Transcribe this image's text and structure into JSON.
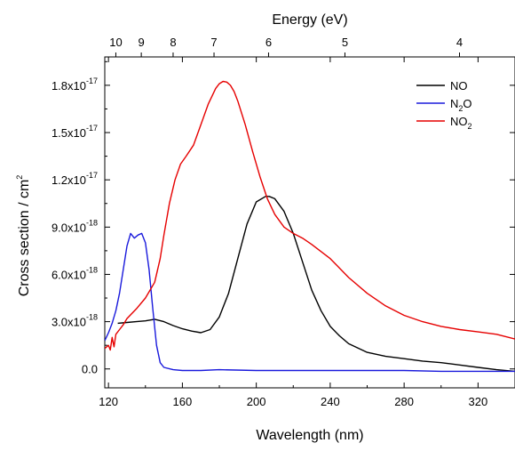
{
  "chart_data": {
    "type": "line",
    "title": "",
    "xlabel": "Wavelength (nm)",
    "ylabel": "Cross section / cm",
    "ylabel_sup": "2",
    "top_axis_label": "Energy (eV)",
    "xlim": [
      118,
      340
    ],
    "ylim": [
      -1.2e-18,
      1.98e-17
    ],
    "x_ticks": [
      120,
      160,
      200,
      240,
      280,
      320
    ],
    "x_tick_labels": [
      "120",
      "160",
      "200",
      "240",
      "280",
      "320"
    ],
    "y_ticks": [
      0,
      3e-18,
      6e-18,
      9e-18,
      1.2e-17,
      1.5e-17,
      1.8e-17
    ],
    "y_tick_labels": [
      {
        "mantissa": "0.0",
        "exp": ""
      },
      {
        "mantissa": "3.0x10",
        "exp": "-18"
      },
      {
        "mantissa": "6.0x10",
        "exp": "-18"
      },
      {
        "mantissa": "9.0x10",
        "exp": "-18"
      },
      {
        "mantissa": "1.2x10",
        "exp": "-17"
      },
      {
        "mantissa": "1.5x10",
        "exp": "-17"
      },
      {
        "mantissa": "1.8x10",
        "exp": "-17"
      }
    ],
    "energy_ticks": [
      {
        "label": "10",
        "ev": 10
      },
      {
        "label": "9",
        "ev": 9
      },
      {
        "label": "8",
        "ev": 8
      },
      {
        "label": "7",
        "ev": 7
      },
      {
        "label": "6",
        "ev": 6
      },
      {
        "label": "5",
        "ev": 5
      },
      {
        "label": "4",
        "ev": 4
      }
    ],
    "grid": false,
    "legend_position": "top-right",
    "series": [
      {
        "name": "NO",
        "name_base": "NO",
        "name_sub": "",
        "color": "#000000",
        "x": [
          125,
          130,
          135,
          140,
          145,
          150,
          155,
          160,
          165,
          170,
          175,
          180,
          185,
          190,
          195,
          200,
          205,
          207,
          210,
          215,
          220,
          225,
          230,
          235,
          240,
          245,
          250,
          260,
          270,
          280,
          290,
          300,
          310,
          320,
          330,
          340
        ],
        "y": [
          2.9e-18,
          2.95e-18,
          3e-18,
          3.05e-18,
          3.15e-18,
          3e-18,
          2.75e-18,
          2.55e-18,
          2.4e-18,
          2.3e-18,
          2.5e-18,
          3.3e-18,
          4.8e-18,
          7e-18,
          9.2e-18,
          1.06e-17,
          1.095e-17,
          1.095e-17,
          1.08e-17,
          1e-17,
          8.6e-18,
          6.8e-18,
          5e-18,
          3.7e-18,
          2.7e-18,
          2.1e-18,
          1.6e-18,
          1.05e-18,
          8e-19,
          6.5e-19,
          5e-19,
          4e-19,
          2.5e-19,
          1e-19,
          -5e-20,
          -1.5e-19
        ]
      },
      {
        "name": "N2O",
        "name_base": "N",
        "name_sub": "2",
        "name_tail": "O",
        "color": "#1a1adc",
        "x": [
          118,
          120,
          122,
          124,
          126,
          128,
          130,
          132,
          134,
          136,
          138,
          140,
          142,
          144,
          146,
          148,
          150,
          155,
          160,
          170,
          180,
          200,
          220,
          240,
          260,
          280,
          300,
          320,
          340
        ],
        "y": [
          1.8e-18,
          2.3e-18,
          2.9e-18,
          3.7e-18,
          4.8e-18,
          6.3e-18,
          7.8e-18,
          8.6e-18,
          8.3e-18,
          8.5e-18,
          8.6e-18,
          8e-18,
          6.3e-18,
          3.8e-18,
          1.5e-18,
          4e-19,
          1e-19,
          -5e-20,
          -1e-19,
          -1e-19,
          -5e-20,
          -1e-19,
          -1e-19,
          -1e-19,
          -1e-19,
          -1e-19,
          -1.5e-19,
          -1.5e-19,
          -1.5e-19
        ]
      },
      {
        "name": "NO2",
        "name_base": "NO",
        "name_sub": "2",
        "color": "#e60000",
        "x": [
          118,
          120,
          121,
          122,
          123,
          124,
          126,
          128,
          130,
          135,
          140,
          145,
          148,
          150,
          153,
          156,
          159,
          162,
          166,
          170,
          174,
          178,
          180,
          182,
          184,
          186,
          188,
          190,
          194,
          198,
          202,
          206,
          210,
          215,
          220,
          225,
          230,
          240,
          250,
          260,
          270,
          280,
          290,
          300,
          310,
          320,
          330,
          340
        ],
        "y": [
          1.3e-18,
          1.5e-18,
          1.2e-18,
          2e-18,
          1.4e-18,
          2.2e-18,
          2.5e-18,
          2.8e-18,
          3.2e-18,
          3.8e-18,
          4.5e-18,
          5.5e-18,
          7e-18,
          8.5e-18,
          1.05e-17,
          1.2e-17,
          1.3e-17,
          1.35e-17,
          1.42e-17,
          1.55e-17,
          1.68e-17,
          1.78e-17,
          1.81e-17,
          1.825e-17,
          1.82e-17,
          1.8e-17,
          1.76e-17,
          1.7e-17,
          1.55e-17,
          1.38e-17,
          1.22e-17,
          1.08e-17,
          9.8e-18,
          9e-18,
          8.6e-18,
          8.3e-18,
          7.9e-18,
          7e-18,
          5.8e-18,
          4.8e-18,
          4e-18,
          3.4e-18,
          3e-18,
          2.7e-18,
          2.5e-18,
          2.35e-18,
          2.2e-18,
          1.9e-18
        ]
      }
    ]
  }
}
